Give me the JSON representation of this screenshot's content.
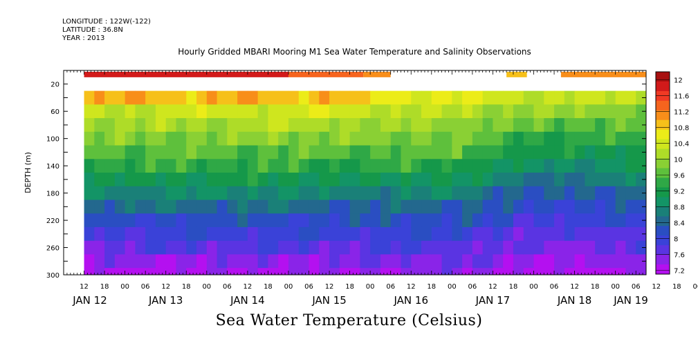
{
  "header": {
    "longitude": "LONGITUDE : 122W(-122)",
    "latitude": "LATITUDE : 36.8N",
    "year": "YEAR : 2013"
  },
  "chart_data": {
    "type": "heatmap",
    "title": "Hourly Gridded MBARI Mooring M1 Sea Water Temperature and Salinity Observations",
    "xlabel": "Sea Water Temperature (Celsius)",
    "ylabel": "DEPTH (m)",
    "ylim": [
      300,
      0
    ],
    "yticks": [
      20,
      60,
      100,
      140,
      180,
      220,
      260,
      300
    ],
    "x_hour_labels": [
      "12",
      "18",
      "00",
      "06",
      "12",
      "18",
      "00",
      "06",
      "12",
      "18",
      "00",
      "06",
      "12",
      "18",
      "00",
      "06",
      "12",
      "18",
      "00",
      "06",
      "12",
      "18",
      "00",
      "06",
      "12",
      "18",
      "00",
      "06",
      "12",
      "18",
      "00",
      "06",
      "12",
      "18",
      "00",
      "06"
    ],
    "x_day_labels": [
      "JAN 12",
      "JAN 13",
      "JAN 14",
      "JAN 15",
      "JAN 16",
      "JAN 17",
      "JAN 18",
      "JAN 19"
    ],
    "x_range": [
      "2013-01-12T06:00",
      "2013-01-19T09:00"
    ],
    "colorbar": {
      "labels": [
        "12",
        "11.6",
        "11.2",
        "10.8",
        "10.4",
        "10",
        "9.6",
        "9.2",
        "8.8",
        "8.4",
        "8",
        "7.6",
        "7.2"
      ],
      "colors": [
        "#a81010",
        "#d21a1a",
        "#f03a24",
        "#f6641e",
        "#f88e1a",
        "#f6c01a",
        "#ecec18",
        "#cfe61e",
        "#aedc28",
        "#8ad034",
        "#5ec03c",
        "#2fa846",
        "#15984a",
        "#139466",
        "#1a8078",
        "#23688e",
        "#2a4ec2",
        "#3a42d8",
        "#5a34e2",
        "#8a24e8",
        "#b410f0"
      ]
    },
    "data_start_date": "2013-01-12T12:00",
    "near_surface_row": {
      "depth": 10,
      "segments": [
        {
          "start": "2013-01-12T12:00",
          "end": "2013-01-15T00:00",
          "value": 11.6
        },
        {
          "start": "2013-01-15T00:00",
          "end": "2013-01-15T22:00",
          "value": 11.2
        },
        {
          "start": "2013-01-15T22:00",
          "end": "2013-01-16T06:00",
          "value": 11.0
        },
        {
          "start": "2013-01-17T16:00",
          "end": "2013-01-17T22:00",
          "value": 10.8
        },
        {
          "start": "2013-01-18T08:00",
          "end": "2013-01-19T09:00",
          "value": 10.9
        }
      ]
    },
    "profile_depths": [
      40,
      60,
      80,
      100,
      120,
      140,
      160,
      180,
      200,
      220,
      240,
      260,
      280,
      300
    ],
    "profile_points": [
      {
        "time": "2013-01-12T12:00",
        "temps": [
          10.8,
          10.2,
          9.95,
          9.75,
          9.55,
          9.35,
          9.05,
          8.75,
          8.45,
          8.15,
          7.95,
          7.75,
          7.5,
          7.35
        ]
      },
      {
        "time": "2013-01-13T00:00",
        "temps": [
          10.8,
          10.2,
          9.95,
          9.75,
          9.55,
          9.35,
          9.05,
          8.75,
          8.45,
          8.15,
          7.95,
          7.75,
          7.5,
          7.35
        ]
      },
      {
        "time": "2013-01-13T12:00",
        "temps": [
          10.8,
          10.25,
          10.0,
          9.8,
          9.6,
          9.4,
          9.1,
          8.8,
          8.5,
          8.2,
          8.0,
          7.8,
          7.5,
          7.35
        ]
      },
      {
        "time": "2013-01-14T00:00",
        "temps": [
          10.8,
          10.25,
          10.0,
          9.8,
          9.6,
          9.4,
          9.1,
          8.8,
          8.5,
          8.2,
          8.0,
          7.8,
          7.55,
          7.4
        ]
      },
      {
        "time": "2013-01-14T12:00",
        "temps": [
          10.8,
          10.3,
          10.05,
          9.85,
          9.6,
          9.4,
          9.1,
          8.8,
          8.5,
          8.2,
          8.0,
          7.8,
          7.55,
          7.4
        ]
      },
      {
        "time": "2013-01-15T00:00",
        "temps": [
          10.8,
          10.3,
          10.05,
          9.85,
          9.6,
          9.4,
          9.1,
          8.8,
          8.5,
          8.2,
          8.0,
          7.8,
          7.55,
          7.4
        ]
      },
      {
        "time": "2013-01-15T12:00",
        "temps": [
          10.8,
          10.3,
          10.0,
          9.8,
          9.55,
          9.3,
          9.0,
          8.7,
          8.4,
          8.15,
          7.95,
          7.75,
          7.55,
          7.45
        ]
      },
      {
        "time": "2013-01-16T06:00",
        "temps": [
          10.5,
          10.2,
          9.95,
          9.75,
          9.55,
          9.35,
          9.05,
          8.75,
          8.45,
          8.25,
          8.05,
          7.85,
          7.65,
          7.5
        ]
      },
      {
        "time": "2013-01-17T00:00",
        "temps": [
          10.4,
          10.15,
          9.95,
          9.75,
          9.55,
          9.3,
          9.05,
          8.75,
          8.45,
          8.25,
          8.05,
          7.85,
          7.65,
          7.5
        ]
      },
      {
        "time": "2013-01-17T20:00",
        "temps": [
          10.2,
          9.9,
          9.6,
          9.35,
          9.1,
          8.85,
          8.6,
          8.35,
          8.15,
          7.95,
          7.75,
          7.6,
          7.45,
          7.35
        ]
      },
      {
        "time": "2013-01-18T12:00",
        "temps": [
          10.2,
          9.85,
          9.6,
          9.35,
          9.1,
          8.85,
          8.6,
          8.35,
          8.15,
          7.95,
          7.75,
          7.6,
          7.4,
          7.25
        ]
      },
      {
        "time": "2013-01-19T09:00",
        "temps": [
          10.1,
          9.85,
          9.6,
          9.4,
          9.2,
          9.0,
          8.75,
          8.5,
          8.3,
          8.1,
          7.9,
          7.75,
          7.6,
          7.5
        ]
      }
    ]
  }
}
